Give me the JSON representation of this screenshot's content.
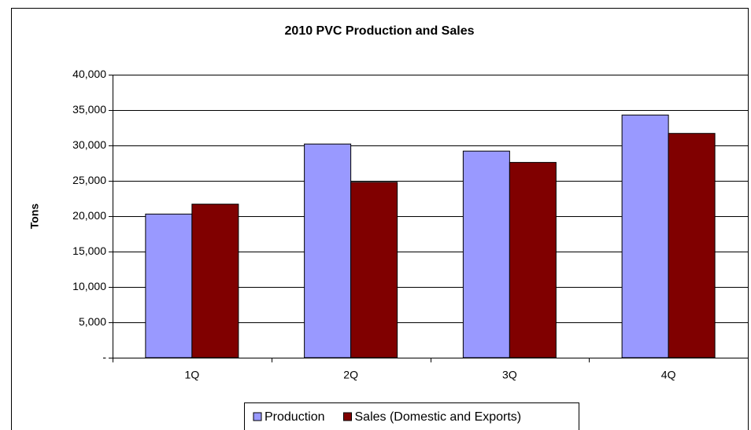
{
  "chart_data": {
    "type": "bar",
    "title": "2010 PVC Production and Sales",
    "y_label": "Tons",
    "categories": [
      "1Q",
      "2Q",
      "3Q",
      "4Q"
    ],
    "series": [
      {
        "name": "Production",
        "color": "#9999ff",
        "values": [
          20300,
          30200,
          29200,
          34300
        ]
      },
      {
        "name": "Sales (Domestic and Exports)",
        "color": "#800000",
        "values": [
          21700,
          24800,
          27600,
          31700
        ]
      }
    ],
    "ylim": [
      0,
      40000
    ],
    "yticks": [
      {
        "value": 0,
        "label": "-"
      },
      {
        "value": 5000,
        "label": "5,000"
      },
      {
        "value": 10000,
        "label": "10,000"
      },
      {
        "value": 15000,
        "label": "15,000"
      },
      {
        "value": 20000,
        "label": "20,000"
      },
      {
        "value": 25000,
        "label": "25,000"
      },
      {
        "value": 30000,
        "label": "30,000"
      },
      {
        "value": 35000,
        "label": "35,000"
      },
      {
        "value": 40000,
        "label": "40,000"
      }
    ],
    "grid": true,
    "legend": "bottom"
  }
}
